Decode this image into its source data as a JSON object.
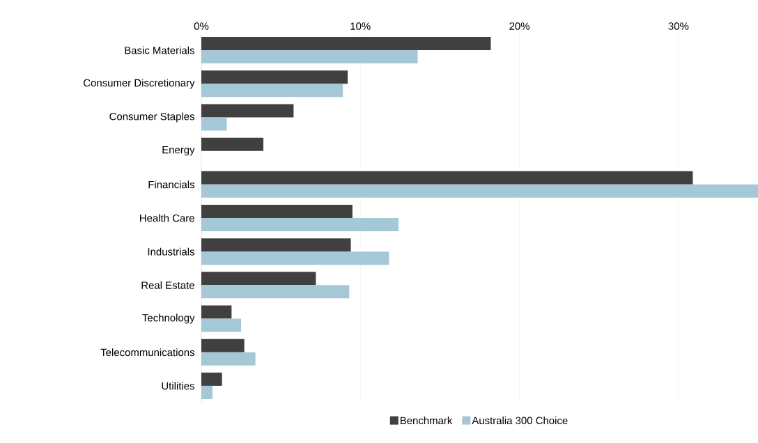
{
  "chart_data": {
    "type": "bar",
    "orientation": "horizontal",
    "categories": [
      "Basic Materials",
      "Consumer Discretionary",
      "Consumer Staples",
      "Energy",
      "Financials",
      "Health Care",
      "Industrials",
      "Real Estate",
      "Technology",
      "Telecommunications",
      "Utilities"
    ],
    "series": [
      {
        "name": "Benchmark",
        "color": "#404040",
        "values": [
          18.2,
          9.2,
          5.8,
          3.9,
          30.9,
          9.5,
          9.4,
          7.2,
          1.9,
          2.7,
          1.3
        ]
      },
      {
        "name": "Australia 300 Choice",
        "color": "#a5c8d7",
        "values": [
          13.6,
          8.9,
          1.6,
          null,
          35,
          12.4,
          11.8,
          9.3,
          2.5,
          3.4,
          0.7
        ]
      }
    ],
    "xlim": [
      0,
      35
    ],
    "xticks": [
      {
        "value": 0,
        "label": "0%"
      },
      {
        "value": 10,
        "label": "10%"
      },
      {
        "value": 20,
        "label": "20%"
      },
      {
        "value": 30,
        "label": "30%"
      }
    ],
    "grid": "x",
    "legend": "bottom"
  }
}
